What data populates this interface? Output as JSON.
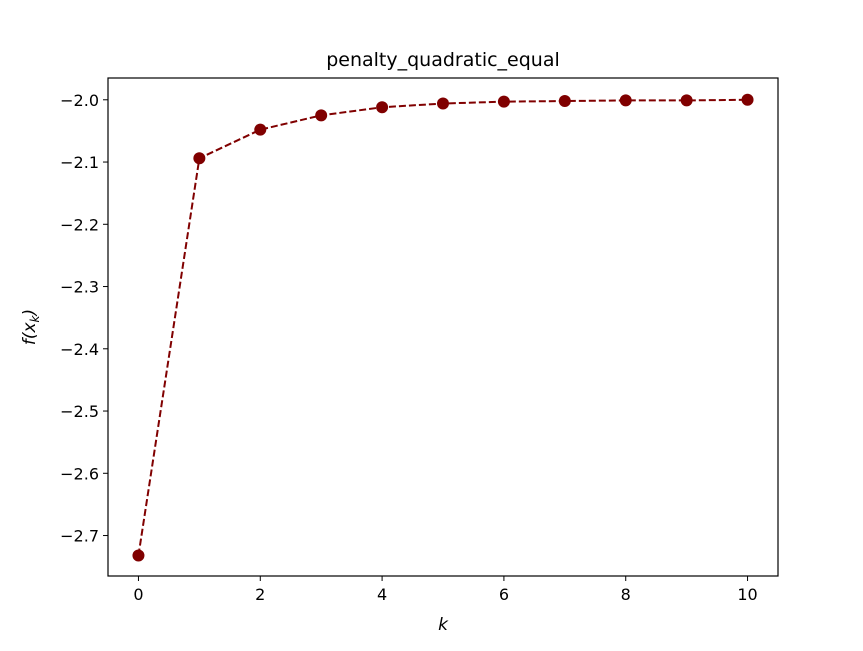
{
  "chart_data": {
    "type": "line",
    "title": "penalty_quadratic_equal",
    "xlabel": "k",
    "ylabel": "f(x",
    "ylabel_subscript": "k",
    "ylabel_close": ")",
    "xlim": [
      -0.5,
      10.5
    ],
    "ylim": [
      -2.765,
      -1.965
    ],
    "x_ticks": [
      0,
      2,
      4,
      6,
      8,
      10
    ],
    "x_tick_labels": [
      "0",
      "2",
      "4",
      "6",
      "8",
      "10"
    ],
    "y_ticks": [
      -2.0,
      -2.1,
      -2.2,
      -2.3,
      -2.4,
      -2.5,
      -2.6,
      -2.7
    ],
    "y_tick_labels": [
      "−2.0",
      "−2.1",
      "−2.2",
      "−2.3",
      "−2.4",
      "−2.5",
      "−2.6",
      "−2.7"
    ],
    "grid": false,
    "series": [
      {
        "color": "#800000",
        "line_style": "dashed",
        "marker": "circle",
        "x": [
          0,
          1,
          2,
          3,
          4,
          5,
          6,
          7,
          8,
          9,
          10
        ],
        "values": [
          -2.732,
          -2.094,
          -2.048,
          -2.025,
          -2.012,
          -2.006,
          -2.003,
          -2.002,
          -2.001,
          -2.001,
          -2.0
        ]
      }
    ]
  }
}
